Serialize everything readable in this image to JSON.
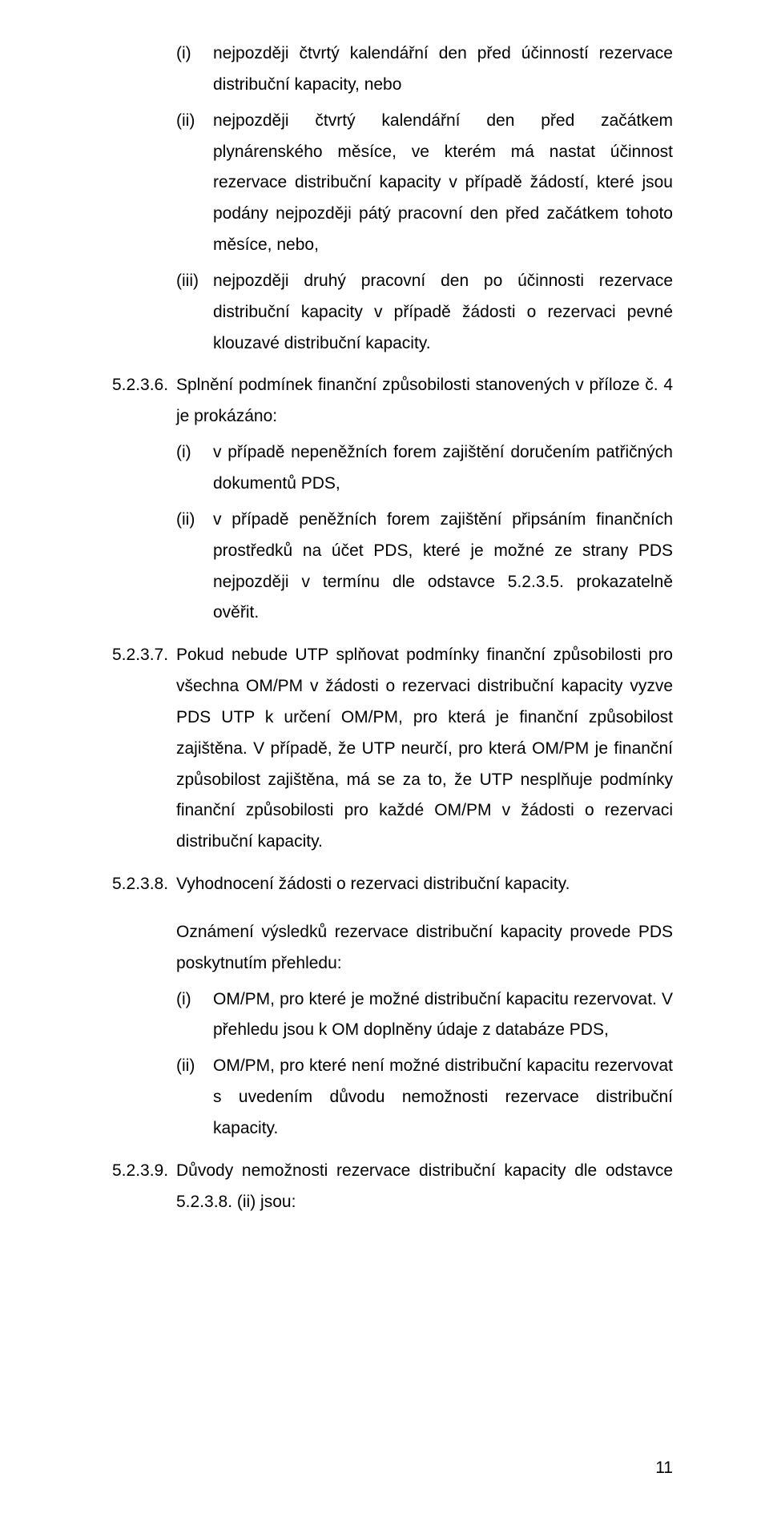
{
  "roman_top": {
    "i": {
      "marker": "(i)",
      "text": "nejpozději čtvrtý kalendářní den před účinností rezervace distribuční kapacity, nebo"
    },
    "ii": {
      "marker": "(ii)",
      "text": "nejpozději čtvrtý kalendářní den před začátkem plynárenského měsíce, ve kterém má nastat účinnost rezervace distribuční kapacity v případě žádostí, které jsou podány nejpozději pátý pracovní den před začátkem tohoto měsíce, nebo,"
    },
    "iii": {
      "marker": "(iii)",
      "text": "nejpozději druhý pracovní den po účinnosti rezervace distribuční kapacity v případě žádosti o rezervaci pevné klouzavé distribuční kapacity."
    }
  },
  "n5236": {
    "marker": "5.2.3.6.",
    "lead": "Splnění podmínek finanční způsobilosti stanovených v příloze č. 4 je prokázáno:",
    "i": {
      "marker": "(i)",
      "text": "v případě nepeněžních forem zajištění doručením patřičných dokumentů PDS,"
    },
    "ii": {
      "marker": "(ii)",
      "text": "v případě peněžních forem zajištění připsáním finančních prostředků na účet PDS, které je možné ze strany PDS nejpozději v termínu dle odstavce 5.2.3.5. prokazatelně ověřit."
    }
  },
  "n5237": {
    "marker": "5.2.3.7.",
    "text": "Pokud nebude UTP splňovat podmínky finanční způsobilosti pro všechna OM/PM v žádosti o rezervaci distribuční kapacity vyzve PDS UTP k určení OM/PM, pro která je finanční způsobilost zajištěna. V případě, že UTP neurčí, pro která OM/PM je finanční způsobilost zajištěna, má se za to, že UTP nesplňuje podmínky finanční způsobilosti pro každé OM/PM v žádosti o rezervaci distribuční kapacity."
  },
  "n5238": {
    "marker": "5.2.3.8.",
    "head": "Vyhodnocení žádosti o rezervaci distribuční kapacity.",
    "after": "Oznámení výsledků rezervace distribuční kapacity provede PDS poskytnutím přehledu:",
    "i": {
      "marker": "(i)",
      "text": "OM/PM, pro které je možné distribuční kapacitu rezervovat. V přehledu jsou k OM doplněny údaje z databáze PDS,"
    },
    "ii": {
      "marker": "(ii)",
      "text": "OM/PM, pro které není možné distribuční kapacitu rezervovat s uvedením důvodu nemožnosti rezervace distribuční kapacity."
    }
  },
  "n5239": {
    "marker": "5.2.3.9.",
    "text": "Důvody nemožnosti rezervace distribuční kapacity dle odstavce 5.2.3.8. (ii) jsou:"
  },
  "page_number": "11"
}
